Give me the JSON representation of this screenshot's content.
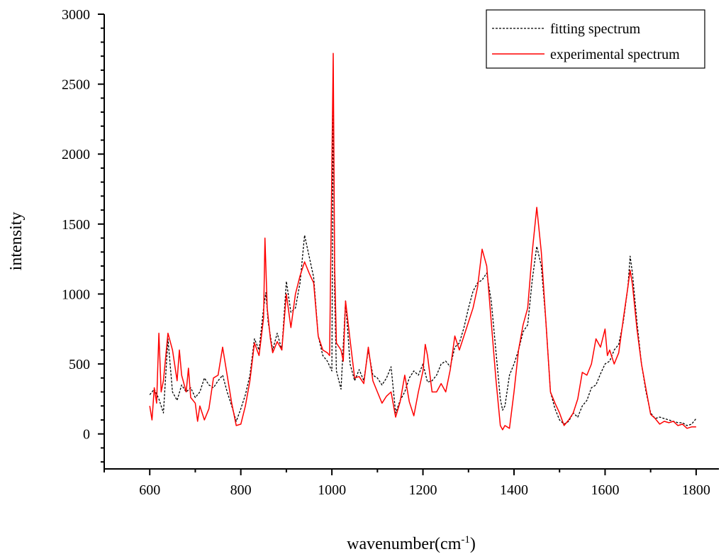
{
  "chart_data": {
    "type": "line",
    "xlabel": "wavenumber(cm",
    "xlabel_sup": "-1",
    "xlabel_close": ")",
    "ylabel": "intensity",
    "xlim": [
      500,
      1850
    ],
    "ylim": [
      -250,
      3000
    ],
    "x_ticks": [
      600,
      800,
      1000,
      1200,
      1400,
      1600,
      1800
    ],
    "y_ticks": [
      0,
      500,
      1000,
      1500,
      2000,
      2500,
      3000
    ],
    "legend": {
      "placement": "top-right"
    },
    "grid": false,
    "series": [
      {
        "name": "fitting spectrum",
        "color": "#000000",
        "dash": "dashed",
        "points": [
          [
            600,
            280
          ],
          [
            610,
            320
          ],
          [
            620,
            250
          ],
          [
            630,
            150
          ],
          [
            640,
            680
          ],
          [
            650,
            300
          ],
          [
            660,
            240
          ],
          [
            670,
            350
          ],
          [
            680,
            300
          ],
          [
            690,
            330
          ],
          [
            700,
            260
          ],
          [
            710,
            300
          ],
          [
            720,
            400
          ],
          [
            730,
            350
          ],
          [
            740,
            330
          ],
          [
            750,
            380
          ],
          [
            760,
            420
          ],
          [
            770,
            300
          ],
          [
            780,
            200
          ],
          [
            790,
            90
          ],
          [
            800,
            180
          ],
          [
            810,
            280
          ],
          [
            820,
            420
          ],
          [
            830,
            680
          ],
          [
            840,
            600
          ],
          [
            850,
            900
          ],
          [
            855,
            1010
          ],
          [
            860,
            800
          ],
          [
            870,
            600
          ],
          [
            880,
            720
          ],
          [
            890,
            600
          ],
          [
            900,
            1090
          ],
          [
            910,
            870
          ],
          [
            920,
            900
          ],
          [
            930,
            1080
          ],
          [
            940,
            1420
          ],
          [
            950,
            1270
          ],
          [
            960,
            1120
          ],
          [
            970,
            700
          ],
          [
            980,
            560
          ],
          [
            990,
            520
          ],
          [
            1000,
            450
          ],
          [
            1003,
            2550
          ],
          [
            1006,
            1000
          ],
          [
            1010,
            450
          ],
          [
            1020,
            320
          ],
          [
            1030,
            950
          ],
          [
            1040,
            500
          ],
          [
            1050,
            380
          ],
          [
            1060,
            460
          ],
          [
            1070,
            380
          ],
          [
            1080,
            600
          ],
          [
            1090,
            420
          ],
          [
            1100,
            400
          ],
          [
            1110,
            350
          ],
          [
            1120,
            400
          ],
          [
            1130,
            480
          ],
          [
            1140,
            150
          ],
          [
            1150,
            240
          ],
          [
            1160,
            300
          ],
          [
            1170,
            400
          ],
          [
            1180,
            450
          ],
          [
            1190,
            420
          ],
          [
            1200,
            500
          ],
          [
            1210,
            370
          ],
          [
            1220,
            380
          ],
          [
            1230,
            420
          ],
          [
            1240,
            500
          ],
          [
            1250,
            520
          ],
          [
            1260,
            480
          ],
          [
            1270,
            620
          ],
          [
            1280,
            650
          ],
          [
            1290,
            760
          ],
          [
            1300,
            900
          ],
          [
            1310,
            1020
          ],
          [
            1320,
            1080
          ],
          [
            1330,
            1100
          ],
          [
            1340,
            1150
          ],
          [
            1350,
            950
          ],
          [
            1360,
            600
          ],
          [
            1370,
            250
          ],
          [
            1375,
            170
          ],
          [
            1380,
            200
          ],
          [
            1390,
            420
          ],
          [
            1400,
            500
          ],
          [
            1410,
            600
          ],
          [
            1420,
            730
          ],
          [
            1430,
            780
          ],
          [
            1440,
            1100
          ],
          [
            1450,
            1340
          ],
          [
            1460,
            1200
          ],
          [
            1470,
            800
          ],
          [
            1480,
            300
          ],
          [
            1490,
            180
          ],
          [
            1500,
            100
          ],
          [
            1510,
            70
          ],
          [
            1520,
            90
          ],
          [
            1530,
            150
          ],
          [
            1540,
            120
          ],
          [
            1550,
            200
          ],
          [
            1560,
            240
          ],
          [
            1570,
            330
          ],
          [
            1580,
            350
          ],
          [
            1590,
            430
          ],
          [
            1600,
            500
          ],
          [
            1610,
            520
          ],
          [
            1620,
            600
          ],
          [
            1630,
            640
          ],
          [
            1640,
            800
          ],
          [
            1650,
            1050
          ],
          [
            1655,
            1270
          ],
          [
            1660,
            1150
          ],
          [
            1670,
            800
          ],
          [
            1680,
            500
          ],
          [
            1690,
            300
          ],
          [
            1700,
            150
          ],
          [
            1710,
            110
          ],
          [
            1720,
            120
          ],
          [
            1730,
            110
          ],
          [
            1740,
            100
          ],
          [
            1750,
            90
          ],
          [
            1760,
            80
          ],
          [
            1770,
            80
          ],
          [
            1780,
            60
          ],
          [
            1790,
            70
          ],
          [
            1800,
            110
          ]
        ]
      },
      {
        "name": "experimental spectrum",
        "color": "#ff0000",
        "dash": "solid",
        "points": [
          [
            600,
            200
          ],
          [
            605,
            100
          ],
          [
            610,
            330
          ],
          [
            615,
            220
          ],
          [
            620,
            720
          ],
          [
            625,
            300
          ],
          [
            630,
            380
          ],
          [
            640,
            720
          ],
          [
            650,
            600
          ],
          [
            660,
            380
          ],
          [
            665,
            600
          ],
          [
            670,
            420
          ],
          [
            680,
            300
          ],
          [
            685,
            470
          ],
          [
            690,
            260
          ],
          [
            700,
            220
          ],
          [
            705,
            90
          ],
          [
            710,
            200
          ],
          [
            720,
            100
          ],
          [
            730,
            180
          ],
          [
            740,
            400
          ],
          [
            750,
            420
          ],
          [
            760,
            620
          ],
          [
            770,
            420
          ],
          [
            780,
            220
          ],
          [
            790,
            60
          ],
          [
            800,
            70
          ],
          [
            810,
            200
          ],
          [
            820,
            380
          ],
          [
            830,
            650
          ],
          [
            840,
            560
          ],
          [
            850,
            830
          ],
          [
            853,
            1400
          ],
          [
            858,
            900
          ],
          [
            865,
            680
          ],
          [
            870,
            580
          ],
          [
            880,
            660
          ],
          [
            890,
            600
          ],
          [
            900,
            1000
          ],
          [
            910,
            760
          ],
          [
            920,
            1000
          ],
          [
            930,
            1130
          ],
          [
            940,
            1230
          ],
          [
            950,
            1150
          ],
          [
            960,
            1080
          ],
          [
            970,
            700
          ],
          [
            980,
            600
          ],
          [
            990,
            580
          ],
          [
            995,
            560
          ],
          [
            1003,
            2720
          ],
          [
            1006,
            1200
          ],
          [
            1010,
            650
          ],
          [
            1020,
            600
          ],
          [
            1025,
            520
          ],
          [
            1030,
            950
          ],
          [
            1040,
            670
          ],
          [
            1050,
            400
          ],
          [
            1060,
            410
          ],
          [
            1070,
            360
          ],
          [
            1080,
            620
          ],
          [
            1090,
            380
          ],
          [
            1100,
            300
          ],
          [
            1110,
            220
          ],
          [
            1120,
            270
          ],
          [
            1130,
            300
          ],
          [
            1140,
            120
          ],
          [
            1150,
            230
          ],
          [
            1160,
            420
          ],
          [
            1170,
            230
          ],
          [
            1180,
            130
          ],
          [
            1190,
            300
          ],
          [
            1200,
            450
          ],
          [
            1205,
            640
          ],
          [
            1210,
            560
          ],
          [
            1220,
            300
          ],
          [
            1230,
            300
          ],
          [
            1240,
            360
          ],
          [
            1250,
            300
          ],
          [
            1260,
            460
          ],
          [
            1270,
            700
          ],
          [
            1280,
            600
          ],
          [
            1290,
            700
          ],
          [
            1300,
            800
          ],
          [
            1310,
            900
          ],
          [
            1320,
            1050
          ],
          [
            1330,
            1320
          ],
          [
            1340,
            1200
          ],
          [
            1350,
            800
          ],
          [
            1360,
            400
          ],
          [
            1370,
            60
          ],
          [
            1375,
            30
          ],
          [
            1380,
            60
          ],
          [
            1390,
            40
          ],
          [
            1400,
            300
          ],
          [
            1410,
            600
          ],
          [
            1420,
            780
          ],
          [
            1430,
            900
          ],
          [
            1440,
            1300
          ],
          [
            1450,
            1620
          ],
          [
            1460,
            1300
          ],
          [
            1470,
            800
          ],
          [
            1480,
            300
          ],
          [
            1490,
            220
          ],
          [
            1500,
            150
          ],
          [
            1510,
            60
          ],
          [
            1520,
            100
          ],
          [
            1530,
            150
          ],
          [
            1540,
            250
          ],
          [
            1550,
            440
          ],
          [
            1560,
            420
          ],
          [
            1570,
            500
          ],
          [
            1580,
            680
          ],
          [
            1590,
            620
          ],
          [
            1600,
            750
          ],
          [
            1605,
            560
          ],
          [
            1610,
            600
          ],
          [
            1620,
            500
          ],
          [
            1630,
            580
          ],
          [
            1640,
            820
          ],
          [
            1650,
            1050
          ],
          [
            1655,
            1170
          ],
          [
            1660,
            1070
          ],
          [
            1670,
            750
          ],
          [
            1680,
            500
          ],
          [
            1690,
            320
          ],
          [
            1700,
            140
          ],
          [
            1710,
            110
          ],
          [
            1720,
            70
          ],
          [
            1730,
            90
          ],
          [
            1740,
            80
          ],
          [
            1750,
            90
          ],
          [
            1760,
            60
          ],
          [
            1770,
            70
          ],
          [
            1780,
            40
          ],
          [
            1790,
            50
          ],
          [
            1800,
            50
          ]
        ]
      }
    ]
  }
}
